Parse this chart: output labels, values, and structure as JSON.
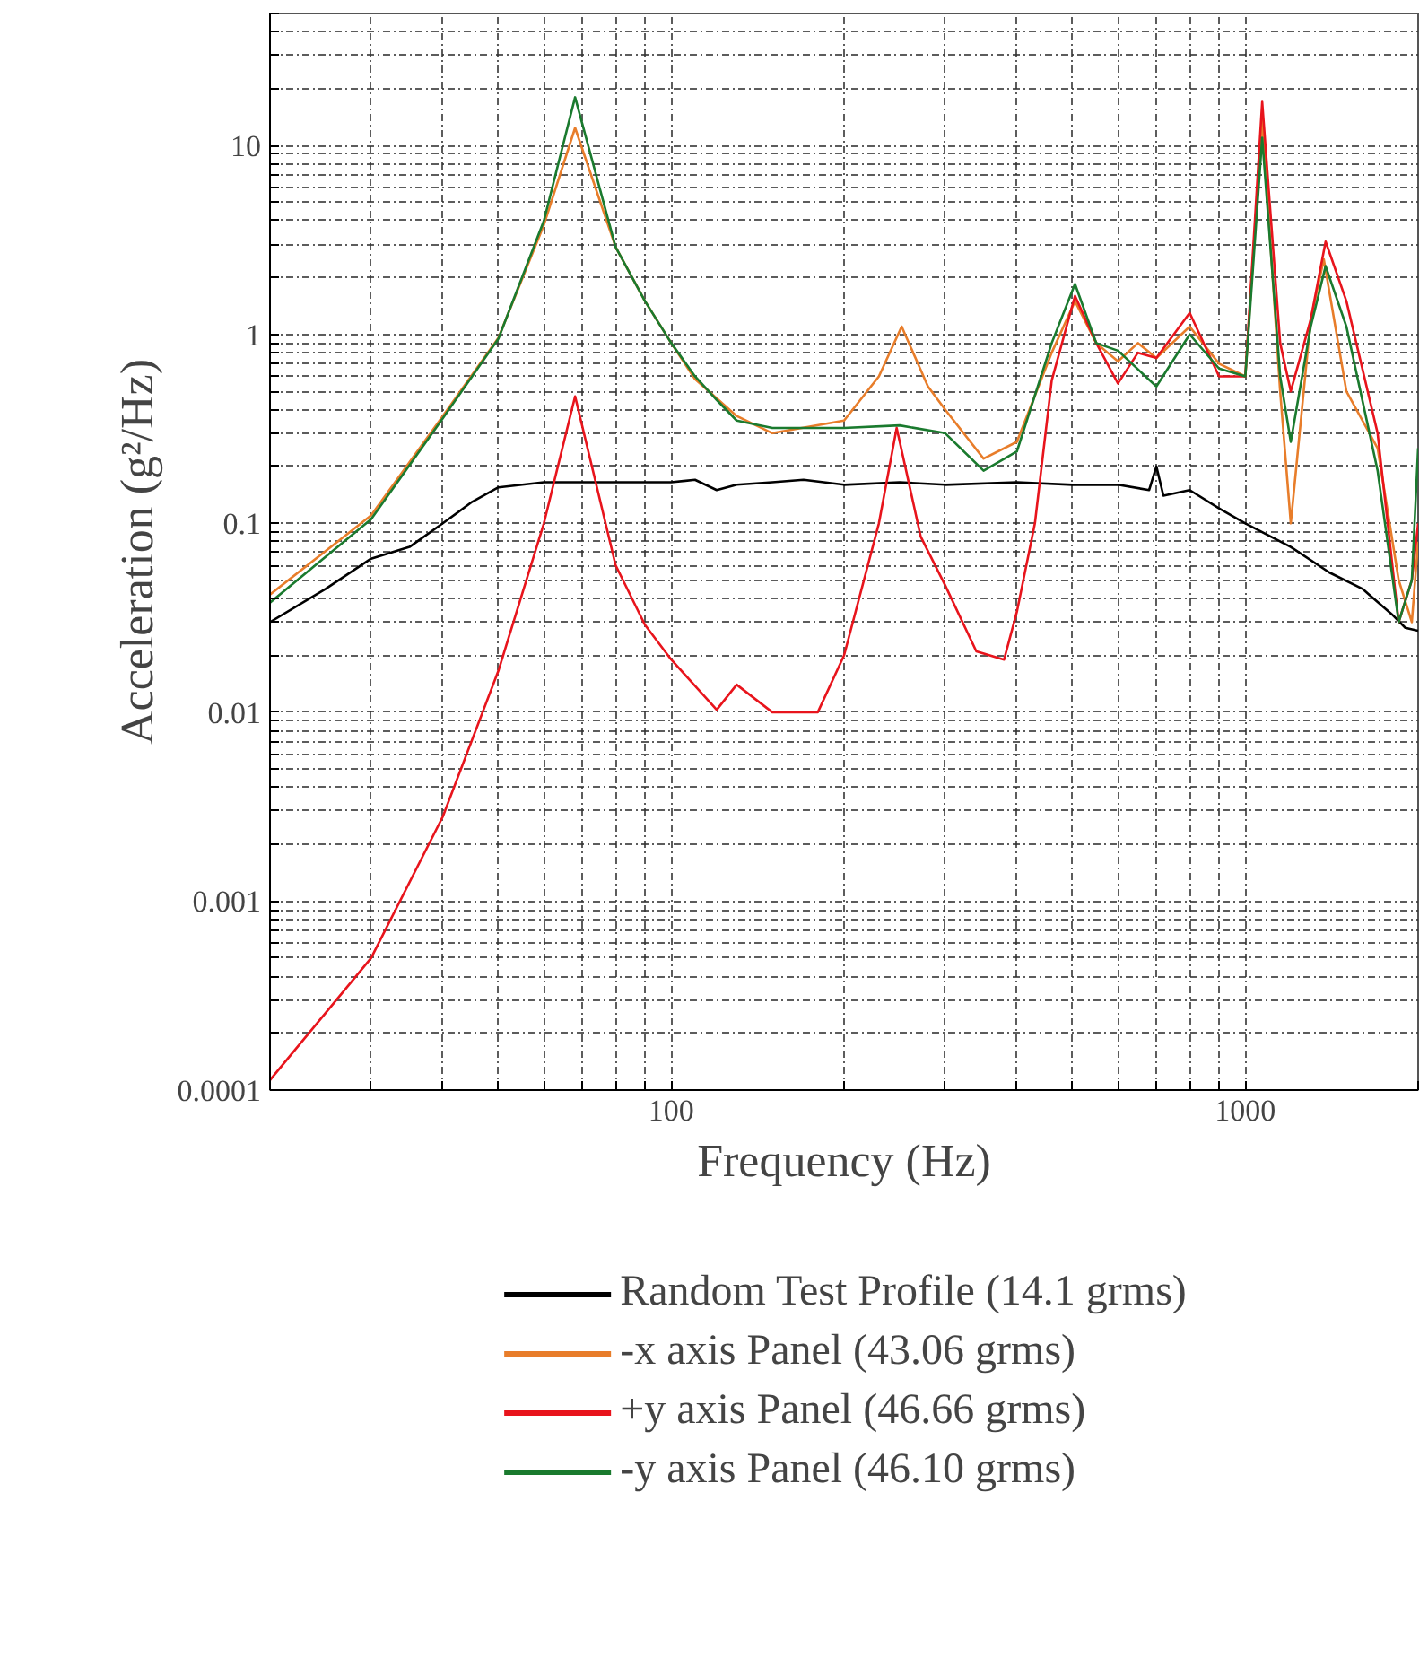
{
  "chart_data": {
    "type": "line",
    "xlabel": "Frequency (Hz)",
    "ylabel": "Acceleration (g²/Hz)",
    "log": "xy",
    "grid": true,
    "legend": "bottom",
    "line_style": "solid",
    "xlim": [
      20,
      2000
    ],
    "ylim": [
      0.0001,
      50
    ],
    "xticks": [
      {
        "value": 20,
        "label": null
      },
      {
        "value": 30,
        "label": null
      },
      {
        "value": 40,
        "label": null
      },
      {
        "value": 50,
        "label": null
      },
      {
        "value": 60,
        "label": null
      },
      {
        "value": 70,
        "label": null
      },
      {
        "value": 80,
        "label": null
      },
      {
        "value": 90,
        "label": null
      },
      100,
      {
        "value": 200,
        "label": null
      },
      {
        "value": 300,
        "label": null
      },
      {
        "value": 400,
        "label": null
      },
      {
        "value": 500,
        "label": null
      },
      {
        "value": 600,
        "label": null
      },
      {
        "value": 700,
        "label": null
      },
      {
        "value": 800,
        "label": null
      },
      {
        "value": 900,
        "label": null
      },
      1000,
      {
        "value": 2000,
        "label": null
      }
    ],
    "yticks": [
      0.0001,
      {
        "value": 0.0002,
        "label": null
      },
      {
        "value": 0.0003,
        "label": null
      },
      {
        "value": 0.0004,
        "label": null
      },
      {
        "value": 0.0005,
        "label": null
      },
      {
        "value": 0.0006,
        "label": null
      },
      {
        "value": 0.0007,
        "label": null
      },
      {
        "value": 0.0008,
        "label": null
      },
      {
        "value": 0.0009,
        "label": null
      },
      0.001,
      {
        "value": 0.002,
        "label": null
      },
      {
        "value": 0.003,
        "label": null
      },
      {
        "value": 0.004,
        "label": null
      },
      {
        "value": 0.005,
        "label": null
      },
      {
        "value": 0.006,
        "label": null
      },
      {
        "value": 0.007,
        "label": null
      },
      {
        "value": 0.008,
        "label": null
      },
      {
        "value": 0.009,
        "label": null
      },
      0.01,
      {
        "value": 0.02,
        "label": null
      },
      {
        "value": 0.03,
        "label": null
      },
      {
        "value": 0.04,
        "label": null
      },
      {
        "value": 0.05,
        "label": null
      },
      {
        "value": 0.06,
        "label": null
      },
      {
        "value": 0.07,
        "label": null
      },
      {
        "value": 0.08,
        "label": null
      },
      {
        "value": 0.09,
        "label": null
      },
      0.1,
      {
        "value": 0.2,
        "label": null
      },
      {
        "value": 0.3,
        "label": null
      },
      {
        "value": 0.4,
        "label": null
      },
      {
        "value": 0.5,
        "label": null
      },
      {
        "value": 0.6,
        "label": null
      },
      {
        "value": 0.7,
        "label": null
      },
      {
        "value": 0.8,
        "label": null
      },
      {
        "value": 0.9,
        "label": null
      },
      1,
      {
        "value": 2,
        "label": null
      },
      {
        "value": 3,
        "label": null
      },
      {
        "value": 4,
        "label": null
      },
      {
        "value": 5,
        "label": null
      },
      {
        "value": 6,
        "label": null
      },
      {
        "value": 7,
        "label": null
      },
      {
        "value": 8,
        "label": null
      },
      {
        "value": 9,
        "label": null
      },
      10,
      {
        "value": 20,
        "label": null
      },
      {
        "value": 30,
        "label": null
      },
      {
        "value": 40,
        "label": null
      },
      {
        "value": 50,
        "label": null
      }
    ],
    "series": [
      {
        "name": "Random Test Profile (14.1 grms)",
        "color": "#000000",
        "x": [
          20,
          25,
          30,
          35,
          40,
          45,
          50,
          55,
          60,
          80,
          100,
          110,
          120,
          130,
          150,
          170,
          200,
          250,
          300,
          400,
          500,
          600,
          680,
          700,
          720,
          800,
          900,
          1000,
          1200,
          1400,
          1600,
          1800,
          1900,
          2000
        ],
        "values": [
          0.03,
          0.045,
          0.065,
          0.075,
          0.1,
          0.13,
          0.155,
          0.16,
          0.165,
          0.165,
          0.165,
          0.17,
          0.15,
          0.16,
          0.165,
          0.17,
          0.16,
          0.165,
          0.16,
          0.165,
          0.16,
          0.16,
          0.15,
          0.2,
          0.14,
          0.15,
          0.12,
          0.1,
          0.075,
          0.055,
          0.045,
          0.033,
          0.028,
          0.027
        ]
      },
      {
        "name": "-x axis Panel (43.06 grms)",
        "color": "#e87d2a",
        "x": [
          20,
          30,
          40,
          50,
          60,
          68,
          80,
          90,
          100,
          110,
          130,
          150,
          200,
          230,
          252,
          280,
          300,
          350,
          400,
          460,
          505,
          550,
          600,
          650,
          700,
          800,
          900,
          1000,
          1070,
          1150,
          1200,
          1300,
          1370,
          1500,
          1700,
          1850,
          1950,
          2000
        ],
        "values": [
          0.042,
          0.11,
          0.37,
          0.96,
          3.8,
          12.4,
          2.9,
          1.5,
          0.9,
          0.58,
          0.37,
          0.3,
          0.35,
          0.6,
          1.1,
          0.53,
          0.4,
          0.22,
          0.27,
          0.8,
          1.5,
          0.9,
          0.72,
          0.9,
          0.75,
          1.1,
          0.7,
          0.6,
          14,
          0.5,
          0.1,
          1.2,
          2.5,
          0.5,
          0.25,
          0.05,
          0.03,
          0.08
        ]
      },
      {
        "name": "+y axis Panel (46.66 grms)",
        "color": "#e8141c",
        "x": [
          20,
          30,
          40,
          50,
          60,
          68,
          80,
          90,
          100,
          120,
          130,
          150,
          170,
          180,
          200,
          230,
          247,
          272,
          300,
          340,
          380,
          400,
          430,
          460,
          505,
          550,
          600,
          650,
          700,
          800,
          900,
          1000,
          1070,
          1150,
          1200,
          1300,
          1380,
          1500,
          1700,
          1850,
          1950,
          2000
        ],
        "values": [
          0.000113,
          0.0005,
          0.0028,
          0.0166,
          0.1,
          0.47,
          0.06,
          0.029,
          0.019,
          0.0103,
          0.014,
          0.01,
          0.01,
          0.01,
          0.02,
          0.1,
          0.32,
          0.085,
          0.047,
          0.021,
          0.019,
          0.034,
          0.1,
          0.57,
          1.6,
          0.9,
          0.55,
          0.8,
          0.75,
          1.3,
          0.6,
          0.6,
          17,
          0.9,
          0.5,
          1.2,
          3.1,
          1.5,
          0.3,
          0.03,
          0.05,
          0.1
        ]
      },
      {
        "name": "-y axis Panel (46.10 grms)",
        "color": "#1a7a2e",
        "x": [
          20,
          30,
          40,
          50,
          60,
          68,
          80,
          90,
          100,
          110,
          120,
          130,
          150,
          200,
          250,
          300,
          350,
          400,
          460,
          505,
          550,
          600,
          700,
          800,
          900,
          1000,
          1070,
          1150,
          1200,
          1300,
          1380,
          1500,
          1700,
          1850,
          1950,
          2000
        ],
        "values": [
          0.038,
          0.105,
          0.36,
          0.95,
          4,
          18,
          2.9,
          1.5,
          0.9,
          0.6,
          0.45,
          0.35,
          0.32,
          0.32,
          0.33,
          0.3,
          0.19,
          0.24,
          0.9,
          1.85,
          0.9,
          0.82,
          0.53,
          1,
          0.66,
          0.6,
          11,
          0.6,
          0.27,
          1.1,
          2.3,
          1.1,
          0.19,
          0.03,
          0.05,
          0.25
        ]
      }
    ]
  }
}
